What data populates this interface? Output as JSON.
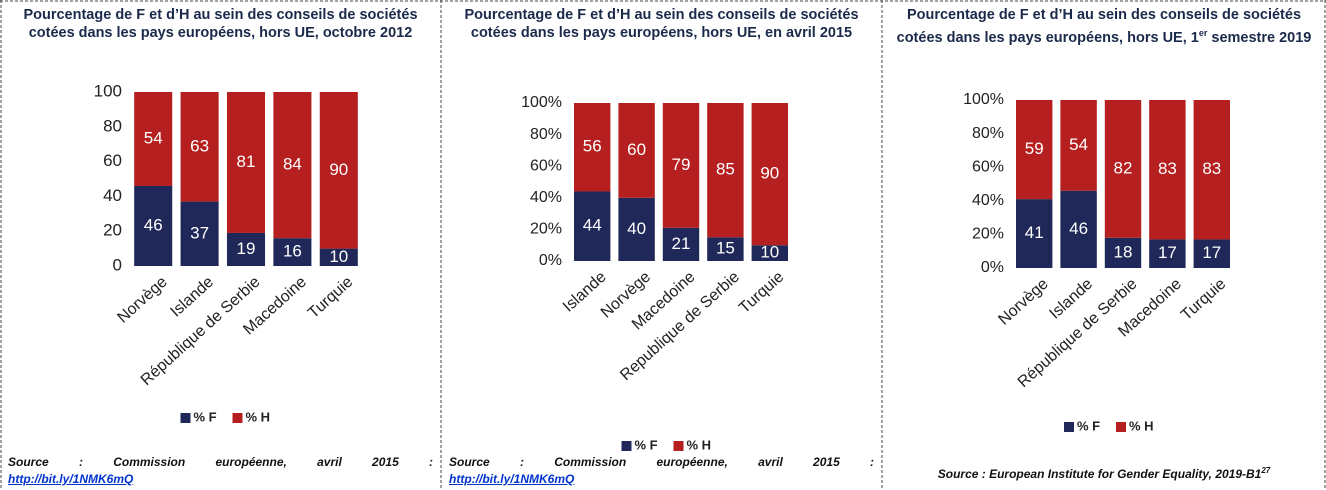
{
  "chart_data": [
    {
      "type": "bar",
      "stacked": true,
      "title": [
        "Pourcentage de F et d’H au sein des conseils de sociétés cotées dans les pays européens, hors UE, octobre 2012"
      ],
      "categories": [
        "Norvège",
        "Islande",
        "République de Serbie",
        "Macedoine",
        "Turquie"
      ],
      "series": [
        {
          "name": "% F",
          "color": "#1f2858",
          "values": [
            46,
            37,
            19,
            16,
            10
          ]
        },
        {
          "name": "% H",
          "color": "#b51f1f",
          "values": [
            54,
            63,
            81,
            84,
            90
          ]
        }
      ],
      "ylim": [
        0,
        100
      ],
      "yticks": [
        0,
        20,
        40,
        60,
        80,
        100
      ],
      "legend": "bottom",
      "source": {
        "text": "Source : Commission européenne, avril 2015 :",
        "link": "http://bit.ly/1NMK6mQ"
      }
    },
    {
      "type": "bar",
      "stacked": true,
      "title": [
        "Pourcentage de F et d’H au sein des conseils de sociétés cotées dans les pays européens, hors UE, en avril 2015"
      ],
      "categories": [
        "Islande",
        "Norvège",
        "Macedoine",
        "Republique de Serbie",
        "Turquie"
      ],
      "series": [
        {
          "name": "% F",
          "color": "#1f2858",
          "values": [
            44,
            40,
            21,
            15,
            10
          ]
        },
        {
          "name": "% H",
          "color": "#b51f1f",
          "values": [
            56,
            60,
            79,
            85,
            90
          ]
        }
      ],
      "ylim": [
        0,
        100
      ],
      "yticks": [
        {
          "value": 0,
          "label": "0%"
        },
        {
          "value": 20,
          "label": "20%"
        },
        {
          "value": 40,
          "label": "40%"
        },
        {
          "value": 60,
          "label": "60%"
        },
        {
          "value": 80,
          "label": "80%"
        },
        {
          "value": 100,
          "label": "100%"
        }
      ],
      "legend": "bottom",
      "source": {
        "text": "Source : Commission européenne, avril 2015 :",
        "link": "http://bit.ly/1NMK6mQ"
      }
    },
    {
      "type": "bar",
      "stacked": true,
      "title": [
        "Pourcentage de F et d’H au sein des conseils de sociétés cotées dans les pays européens, hors UE, 1",
        "er",
        " semestre 2019"
      ],
      "categories": [
        "Norvège",
        "Islande",
        "République de Serbie",
        "Macedoine",
        "Turquie"
      ],
      "series": [
        {
          "name": "% F",
          "color": "#1f2858",
          "values": [
            41,
            46,
            18,
            17,
            17
          ]
        },
        {
          "name": "% H",
          "color": "#b51f1f",
          "values": [
            59,
            54,
            82,
            83,
            83
          ]
        }
      ],
      "ylim": [
        0,
        100
      ],
      "yticks": [
        {
          "value": 0,
          "label": "0%"
        },
        {
          "value": 20,
          "label": "20%"
        },
        {
          "value": 40,
          "label": "40%"
        },
        {
          "value": 60,
          "label": "60%"
        },
        {
          "value": 80,
          "label": "80%"
        },
        {
          "value": 100,
          "label": "100%"
        }
      ],
      "legend": "bottom",
      "source": {
        "text": [
          "Source : European Institute for Gender Equality, 2019-B1",
          "27"
        ]
      }
    }
  ]
}
